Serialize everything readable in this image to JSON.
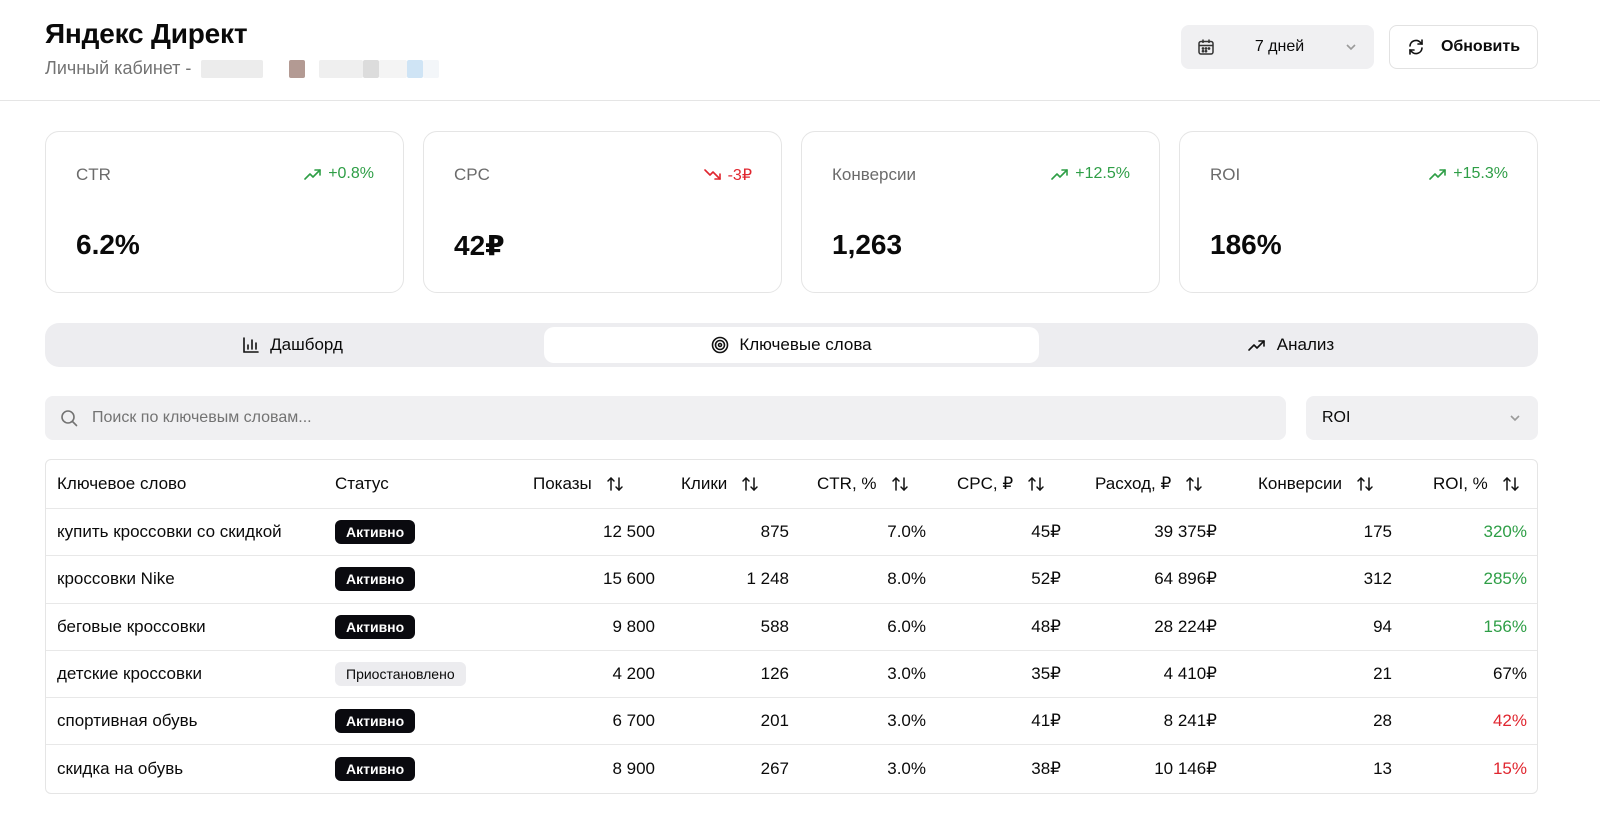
{
  "header": {
    "title": "Яндекс Директ",
    "subtitle": "Личный кабинет -",
    "period": "7 дней",
    "refresh_label": "Обновить"
  },
  "colors": {
    "positive": "#2e9e46",
    "negative": "#e0262f",
    "accent_dark": "#0a0a0f"
  },
  "kpis": [
    {
      "label": "CTR",
      "trend": "+0.8%",
      "direction": "up",
      "value": "6.2%"
    },
    {
      "label": "CPC",
      "trend": "-3₽",
      "direction": "down",
      "value": "42₽"
    },
    {
      "label": "Конверсии",
      "trend": "+12.5%",
      "direction": "up",
      "value": "1,263"
    },
    {
      "label": "ROI",
      "trend": "+15.3%",
      "direction": "up",
      "value": "186%"
    }
  ],
  "tabs": [
    {
      "label": "Дашборд",
      "icon": "bar-chart-icon",
      "active": false
    },
    {
      "label": "Ключевые слова",
      "icon": "target-icon",
      "active": true
    },
    {
      "label": "Анализ",
      "icon": "trending-up-icon",
      "active": false
    }
  ],
  "search": {
    "placeholder": "Поиск по ключевым словам...",
    "value": ""
  },
  "filter": {
    "selected": "ROI"
  },
  "table": {
    "columns": [
      "Ключевое слово",
      "Статус",
      "Показы",
      "Клики",
      "CTR, %",
      "CPC, ₽",
      "Расход, ₽",
      "Конверсии",
      "ROI, %"
    ],
    "rows": [
      {
        "keyword": "купить кроссовки со скидкой",
        "status": "Активно",
        "impressions": "12 500",
        "clicks": "875",
        "ctr": "7.0%",
        "cpc": "45₽",
        "spend": "39 375₽",
        "conversions": "175",
        "roi": "320%",
        "roi_tone": "positive"
      },
      {
        "keyword": "кроссовки Nike",
        "status": "Активно",
        "impressions": "15 600",
        "clicks": "1 248",
        "ctr": "8.0%",
        "cpc": "52₽",
        "spend": "64 896₽",
        "conversions": "312",
        "roi": "285%",
        "roi_tone": "positive"
      },
      {
        "keyword": "беговые кроссовки",
        "status": "Активно",
        "impressions": "9 800",
        "clicks": "588",
        "ctr": "6.0%",
        "cpc": "48₽",
        "spend": "28 224₽",
        "conversions": "94",
        "roi": "156%",
        "roi_tone": "positive"
      },
      {
        "keyword": "детские кроссовки",
        "status": "Приостановлено",
        "impressions": "4 200",
        "clicks": "126",
        "ctr": "3.0%",
        "cpc": "35₽",
        "spend": "4 410₽",
        "conversions": "21",
        "roi": "67%",
        "roi_tone": "neutral"
      },
      {
        "keyword": "спортивная обувь",
        "status": "Активно",
        "impressions": "6 700",
        "clicks": "201",
        "ctr": "3.0%",
        "cpc": "41₽",
        "spend": "8 241₽",
        "conversions": "28",
        "roi": "42%",
        "roi_tone": "negative"
      },
      {
        "keyword": "скидка на обувь",
        "status": "Активно",
        "impressions": "8 900",
        "clicks": "267",
        "ctr": "3.0%",
        "cpc": "38₽",
        "spend": "10 146₽",
        "conversions": "13",
        "roi": "15%",
        "roi_tone": "negative"
      }
    ]
  }
}
